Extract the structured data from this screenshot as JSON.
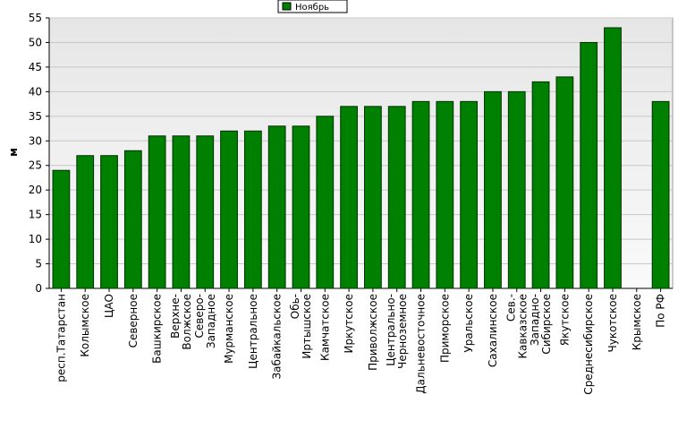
{
  "chart_data": {
    "type": "bar",
    "y_label": "м",
    "categories": [
      "респ.Татарстан",
      "Колымское",
      "ЦАО",
      "Северное",
      "Башкирское",
      "Верхне-\nВолжское",
      "Северо-\nЗападное",
      "Мурманское",
      "Центральное",
      "Забайкальское",
      "Обь-\nИртышское",
      "Камчатское",
      "Иркутское",
      "Приволжское",
      "Центрально-\nЧерноземное",
      "Дальневосточное",
      "Приморское",
      "Уральское",
      "Сахалинское",
      "Сев.-\nКавказское",
      "Западно-\nСибирское",
      "Якутское",
      "Среднесибирское",
      "Чукотское",
      "Крымское",
      "По РФ"
    ],
    "series": [
      {
        "name": "Ноябрь",
        "color": "#008000",
        "values": [
          24,
          27,
          27,
          28,
          31,
          31,
          31,
          32,
          32,
          33,
          33,
          35,
          37,
          37,
          37,
          38,
          38,
          38,
          40,
          40,
          42,
          43,
          50,
          53,
          null,
          38
        ]
      }
    ],
    "ylim": [
      0,
      55
    ],
    "yticks": [
      0,
      5,
      10,
      15,
      20,
      25,
      30,
      35,
      40,
      45,
      50,
      55
    ],
    "grid": true,
    "legend": "top"
  }
}
